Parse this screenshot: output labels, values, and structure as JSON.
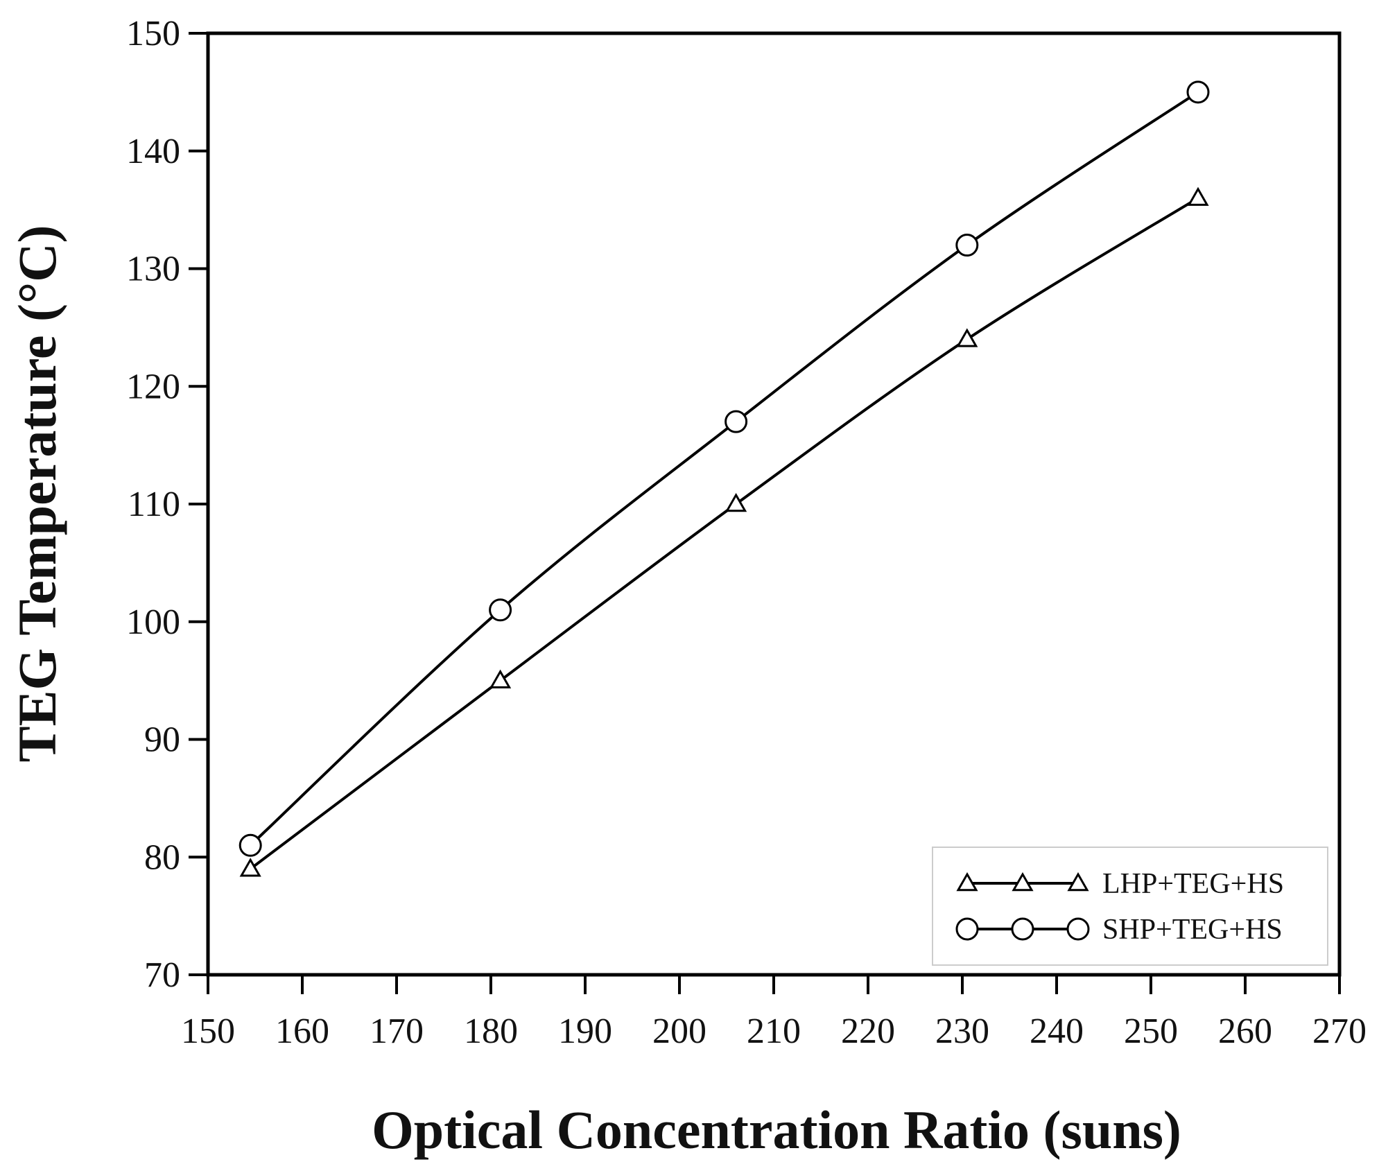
{
  "chart_data": {
    "type": "line",
    "title": "",
    "xlabel": "Optical Concentration Ratio (suns)",
    "ylabel": "TEG Temperature (°C)",
    "xlim": [
      150,
      270
    ],
    "ylim": [
      70,
      150
    ],
    "xticks": [
      "150",
      "160",
      "170",
      "180",
      "190",
      "200",
      "210",
      "220",
      "230",
      "240",
      "250",
      "260",
      "270"
    ],
    "yticks": [
      "70",
      "80",
      "90",
      "100",
      "110",
      "120",
      "130",
      "140",
      "150"
    ],
    "grid": false,
    "legend_position": "bottom-right",
    "x": [
      154.5,
      181,
      206,
      230.5,
      255
    ],
    "series": [
      {
        "name": "LHP+TEG+HS",
        "marker": "triangle",
        "values": [
          79,
          95,
          110,
          124,
          136
        ]
      },
      {
        "name": "SHP+TEG+HS",
        "marker": "circle",
        "values": [
          81,
          101,
          117,
          132,
          145
        ]
      }
    ],
    "colors": {
      "line": "#000000",
      "marker_fill": "#ffffff",
      "background": "#ffffff"
    }
  }
}
